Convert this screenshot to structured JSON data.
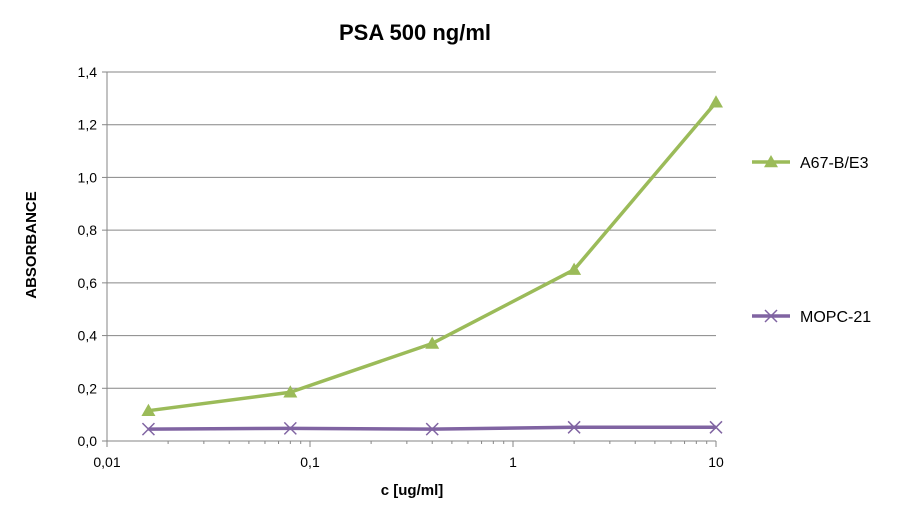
{
  "chart_data": {
    "type": "line",
    "title": "PSA 500 ng/ml",
    "xlabel": "c [ug/ml]",
    "ylabel": "ABSORBANCE",
    "x_scale": "log",
    "xlim": [
      0.01,
      10
    ],
    "ylim": [
      0,
      1.4
    ],
    "x_ticks": [
      "0,01",
      "0,1",
      "1",
      "10"
    ],
    "y_ticks": [
      "0,0",
      "0,2",
      "0,4",
      "0,6",
      "0,8",
      "1,0",
      "1,2",
      "1,4"
    ],
    "grid": "horizontal",
    "legend_position": "right",
    "x": [
      0.016,
      0.08,
      0.4,
      2,
      10
    ],
    "series": [
      {
        "name": "A67-B/E3",
        "marker": "triangle",
        "color": "#9bbb59",
        "values": [
          0.115,
          0.185,
          0.37,
          0.65,
          1.285
        ]
      },
      {
        "name": "MOPC-21",
        "marker": "x",
        "color": "#8064a2",
        "values": [
          0.045,
          0.048,
          0.045,
          0.052,
          0.052
        ]
      }
    ]
  }
}
